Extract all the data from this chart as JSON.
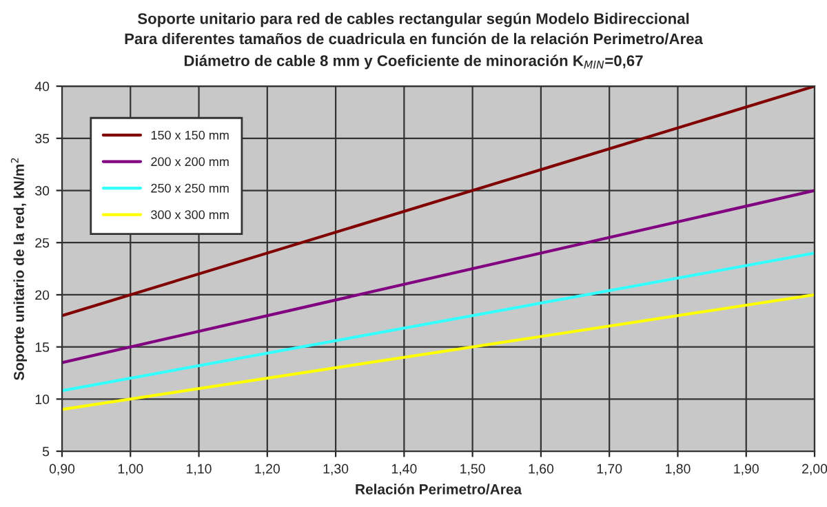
{
  "chart_data": {
    "type": "line",
    "title": "Soporte unitario para red de cables rectangular según Modelo Bidireccional",
    "subtitle": "Para diferentes tamaños de cuadricula en función de la relación Perimetro/Area\nDiámetro de cable 8 mm y Coeficiente de minoración K$_{MIN}$=0,67",
    "xlabel": "Relación Perimetro/Area",
    "ylabel": "Soporte unitario de la red, kN/m$^{2}$",
    "x": [
      0.9,
      2.0
    ],
    "series": [
      {
        "name": "150 x 150 mm",
        "color": "#800000",
        "values": [
          18,
          40
        ]
      },
      {
        "name": "200 x 200 mm",
        "color": "#800080",
        "values": [
          13.5,
          30
        ]
      },
      {
        "name": "250 x 250 mm",
        "color": "#33ffff",
        "values": [
          10.8,
          24
        ]
      },
      {
        "name": "300 x 300 mm",
        "color": "#ffff00",
        "values": [
          9,
          20
        ]
      }
    ],
    "xlim": [
      0.9,
      2.0
    ],
    "xticks": [
      {
        "value": 0.9,
        "label": "0,90"
      },
      {
        "value": 1.0,
        "label": "1,00"
      },
      {
        "value": 1.1,
        "label": "1,10"
      },
      {
        "value": 1.2,
        "label": "1,20"
      },
      {
        "value": 1.3,
        "label": "1,30"
      },
      {
        "value": 1.4,
        "label": "1,40"
      },
      {
        "value": 1.5,
        "label": "1,50"
      },
      {
        "value": 1.6,
        "label": "1,60"
      },
      {
        "value": 1.7,
        "label": "1,70"
      },
      {
        "value": 1.8,
        "label": "1,80"
      },
      {
        "value": 1.9,
        "label": "1,90"
      },
      {
        "value": 2.0,
        "label": "2,00"
      }
    ],
    "ylim": [
      5,
      40
    ],
    "yticks": [
      5,
      10,
      15,
      20,
      25,
      30,
      35,
      40
    ],
    "grid": true,
    "legend": "top left",
    "marker": "none",
    "line_style": "solid"
  }
}
